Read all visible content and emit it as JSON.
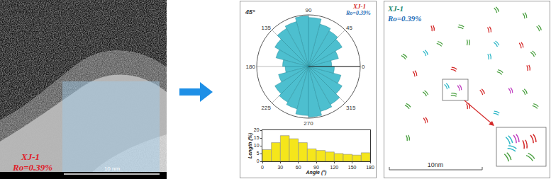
{
  "chart_data": [
    {
      "type": "barpolar",
      "title": "XJ-1",
      "subtitle": "Ro=0.39%",
      "theta": [
        7.5,
        22.5,
        37.5,
        52.5,
        67.5,
        82.5,
        97.5,
        112.5,
        127.5,
        142.5,
        157.5,
        172.5,
        187.5,
        202.5,
        217.5,
        232.5,
        247.5,
        262.5,
        277.5,
        292.5,
        307.5,
        322.5,
        337.5,
        352.5
      ],
      "values": [
        0.45,
        0.6,
        0.75,
        0.8,
        0.85,
        0.95,
        0.98,
        0.9,
        0.85,
        0.75,
        0.65,
        0.5,
        0.45,
        0.6,
        0.75,
        0.8,
        0.85,
        0.95,
        0.98,
        0.9,
        0.85,
        0.75,
        0.65,
        0.5
      ],
      "color": "#4dbfcf",
      "rlim": [
        0,
        1
      ],
      "thetaticks": [
        0,
        45,
        90,
        135,
        180,
        225,
        270,
        315
      ],
      "annotations": [
        "45°"
      ],
      "tick_labels": "x"
    },
    {
      "type": "bar",
      "xlabel": "Angle (°)",
      "ylabel": "Length (%)",
      "bins": [
        0,
        15,
        30,
        45,
        60,
        75,
        90,
        105,
        120,
        135,
        150,
        165,
        180
      ],
      "values": [
        7.5,
        12,
        16.5,
        14.5,
        12,
        8,
        7,
        6,
        5,
        4.5,
        4,
        5.5
      ],
      "color": "#f5e61b",
      "xlim": [
        0,
        180
      ],
      "xticks": [
        0,
        30,
        60,
        90,
        120,
        150,
        180
      ],
      "ylim": [
        0,
        20
      ],
      "yticks": [
        0,
        5,
        10,
        15,
        20
      ],
      "grid": false
    }
  ],
  "tem_image": {
    "sample": "XJ-1",
    "ro": "Ro=0.39%",
    "scale_bar": "10 nm"
  },
  "fringe_map": {
    "sample": "XJ-1",
    "ro": "Ro=0.39%",
    "scale_bar": "10nm"
  }
}
